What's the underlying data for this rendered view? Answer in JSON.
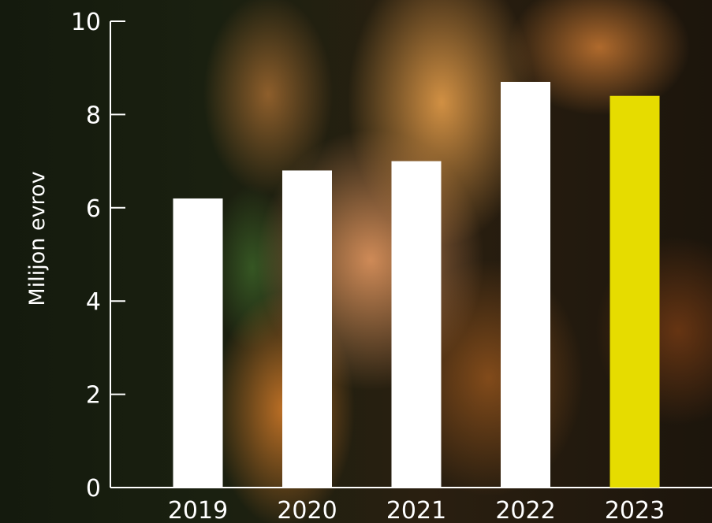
{
  "chart_data": {
    "type": "bar",
    "title": "",
    "xlabel": "",
    "ylabel": "Milijon evrov",
    "categories": [
      "2019",
      "2020",
      "2021",
      "2022",
      "2023"
    ],
    "values": [
      6.2,
      6.8,
      7.0,
      8.7,
      8.4
    ],
    "ylim": [
      0,
      10
    ],
    "yticks": [
      "0",
      "2",
      "4",
      "6",
      "8",
      "10"
    ],
    "grid": false,
    "bar_color": "#ffffff",
    "highlight_color": "#e6dc00",
    "highlight_category": "2023"
  }
}
